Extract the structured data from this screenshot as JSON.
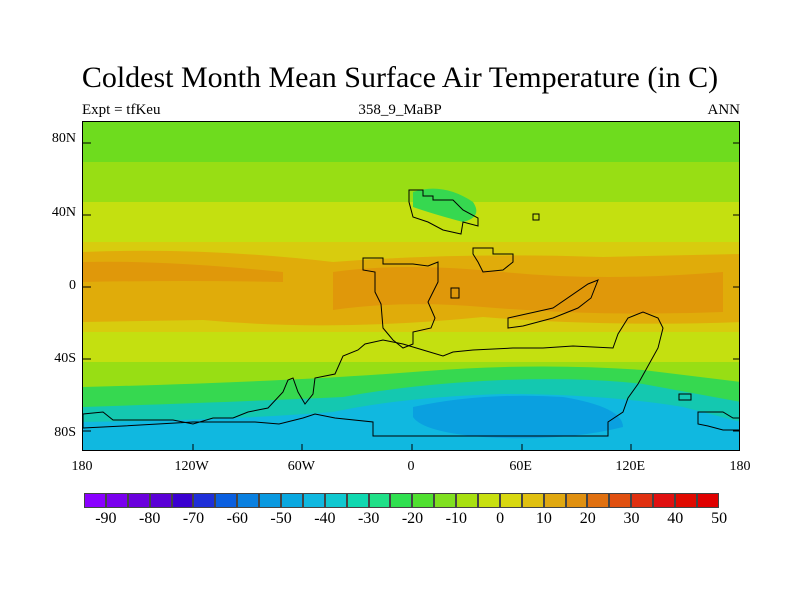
{
  "header": {
    "title": "Coldest Month Mean Surface Air Temperature (in C)",
    "left": "Expt = tfKeu",
    "center": "358_9_MaBP",
    "right": "ANN"
  },
  "axes": {
    "y_ticks": [
      {
        "label": "80N",
        "value": 80
      },
      {
        "label": "40N",
        "value": 40
      },
      {
        "label": "0",
        "value": 0
      },
      {
        "label": "40S",
        "value": -40
      },
      {
        "label": "80S",
        "value": -80
      }
    ],
    "x_ticks": [
      {
        "label": "180",
        "value": -180
      },
      {
        "label": "120W",
        "value": -120
      },
      {
        "label": "60W",
        "value": -60
      },
      {
        "label": "0",
        "value": 0
      },
      {
        "label": "60E",
        "value": 60
      },
      {
        "label": "120E",
        "value": 120
      },
      {
        "label": "180",
        "value": 180
      }
    ]
  },
  "colorbar": {
    "colors": [
      "#8a00ff",
      "#7a00ee",
      "#6a00dd",
      "#5a00d6",
      "#3a00d0",
      "#1f2fd8",
      "#0a5fe0",
      "#0a80e0",
      "#0a99e0",
      "#0aa8e0",
      "#10b8e0",
      "#10c8d0",
      "#10d8b0",
      "#20e088",
      "#30e050",
      "#50e030",
      "#80e020",
      "#a8e010",
      "#c8e010",
      "#d8d810",
      "#e0c010",
      "#e0a810",
      "#e09010",
      "#e07010",
      "#e05010",
      "#e03010",
      "#e01010",
      "#e00a00",
      "#e00000"
    ],
    "labels": [
      "-90",
      "-80",
      "-70",
      "-60",
      "-50",
      "-40",
      "-30",
      "-20",
      "-10",
      "0",
      "10",
      "20",
      "30",
      "40",
      "50"
    ]
  },
  "map": {
    "band_colors": {
      "north_polar": "#6edc1e",
      "north_mid": "#98de14",
      "north_sub": "#c4e010",
      "north_warm": "#d6d80e",
      "tropical": "#e0a80a",
      "tropical_core": "#e0960a",
      "south_sub": "#d6d80e",
      "south_mid": "#a8de14",
      "south_green": "#36d850",
      "south_teal": "#14c8b0",
      "south_cold": "#10b8e0",
      "south_colder": "#0aa0e0"
    }
  }
}
